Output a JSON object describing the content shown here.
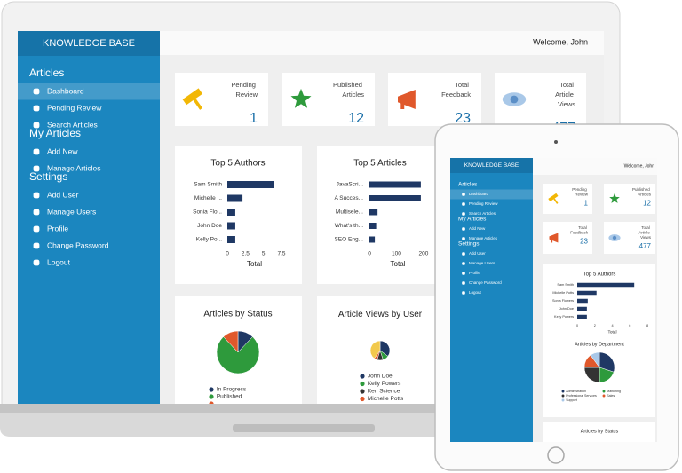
{
  "laptop": {
    "brand": "KNOWLEDGE BASE",
    "welcome": "Welcome, John",
    "menu": [
      {
        "title": "Articles",
        "items": [
          "Dashboard",
          "Pending Review",
          "Search Articles"
        ]
      },
      {
        "title": "My Articles",
        "items": [
          "Add New",
          "Manage Articles"
        ]
      },
      {
        "title": "Settings",
        "items": [
          "Add User",
          "Manage Users",
          "Profile",
          "Change Password",
          "Logout"
        ]
      }
    ],
    "cards": [
      {
        "label": "Pending Review",
        "value": 1
      },
      {
        "label": "Published Articles",
        "value": 12
      },
      {
        "label": "Total Feedback",
        "value": 23
      },
      {
        "label": "Total Article Views",
        "value": 477
      }
    ],
    "charts": [
      {
        "type": "bar",
        "title": "Top 5 Authors",
        "categories": [
          "Sam Smith",
          "Michelle ...",
          "Sonia Flo...",
          "John Doe",
          "Kelly Po..."
        ],
        "values": [
          6.5,
          2.1,
          1.1,
          1.1,
          1.1
        ],
        "color": "#1f3864",
        "xlim": [
          0,
          7.5
        ],
        "xticks": [
          0,
          2.5,
          5,
          7.5
        ],
        "xlabel": "Total"
      },
      {
        "type": "bar",
        "title": "Top 5 Articles",
        "categories": [
          "JavaScri...",
          "A Succes...",
          "Multisele...",
          "What's th...",
          "SEO Eng..."
        ],
        "values": [
          190,
          190,
          30,
          25,
          20
        ],
        "color": "#1f3864",
        "xlim": [
          0,
          210
        ],
        "xticks": [
          0,
          100,
          200
        ],
        "xlabel": "Total"
      },
      {
        "type": "pie",
        "title": "Articles by Status",
        "categories": [
          "In Progress",
          "Published",
          null
        ],
        "values": [
          12,
          76,
          12
        ],
        "colors": [
          "#1f3864",
          "#2e9a3c",
          "#e0582b"
        ]
      },
      {
        "type": "pie",
        "title": "Article Views by User",
        "categories": [
          "John Doe",
          "Kelly Powers",
          "Ken Science",
          "Michelle Potts",
          null
        ],
        "values": [
          35,
          10,
          10,
          5,
          40
        ],
        "colors": [
          "#1f3864",
          "#2e9a3c",
          "#333333",
          "#e0582b",
          "#f2c94c"
        ]
      }
    ]
  },
  "tablet": {
    "brand": "KNOWLEDGE BASE",
    "welcome": "Welcome, John",
    "menu": [
      {
        "title": "Articles",
        "items": [
          "Dashboard",
          "Pending Review",
          "Search Articles"
        ]
      },
      {
        "title": "My Articles",
        "items": [
          "Add New",
          "Manage Articles"
        ]
      },
      {
        "title": "Settings",
        "items": [
          "Add User",
          "Manage Users",
          "Profile",
          "Change Password",
          "Logout"
        ]
      }
    ],
    "cards": [
      {
        "label": "Pending Review",
        "value": 1
      },
      {
        "label": "Published Articles",
        "value": 12
      },
      {
        "label": "Total Feedback",
        "value": 23
      },
      {
        "label": "Total Article Views",
        "value": 477
      }
    ],
    "charts": [
      {
        "type": "bar",
        "title": "Top 5 Authors",
        "categories": [
          "Sam Smith",
          "Michelle Potts",
          "Sonia Flowers",
          "John Doe",
          "Kelly Powers"
        ],
        "values": [
          6.5,
          2.2,
          1.2,
          1.1,
          1.1
        ],
        "color": "#1f3864",
        "xlim": [
          0,
          8
        ],
        "xticks": [
          0,
          2,
          4,
          6,
          8
        ],
        "xlabel": "Total"
      },
      {
        "type": "pie",
        "title": "Articles by Department",
        "categories": [
          "Administration",
          "Marketing",
          "Professional Services",
          "Sales",
          "Support"
        ],
        "values": [
          30,
          20,
          25,
          15,
          10
        ],
        "colors": [
          "#1f3864",
          "#2e9a3c",
          "#333333",
          "#e0582b",
          "#a9c8e8"
        ]
      },
      {
        "type": "pie",
        "title": "Articles by Status"
      }
    ]
  }
}
